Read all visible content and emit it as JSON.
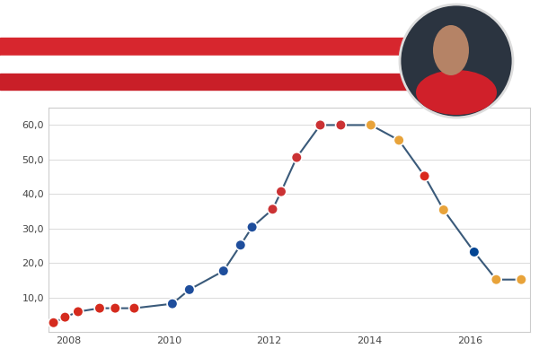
{
  "chart_data": {
    "type": "line",
    "x": [
      2007.7,
      2007.93,
      2008.19,
      2008.62,
      2008.93,
      2009.31,
      2010.07,
      2010.41,
      2011.09,
      2011.43,
      2011.66,
      2012.07,
      2012.24,
      2012.55,
      2013.02,
      2013.43,
      2014.03,
      2014.59,
      2015.1,
      2015.48,
      2016.09,
      2016.53,
      2017.03
    ],
    "values": [
      2.7,
      4.3,
      5.9,
      6.9,
      6.9,
      6.9,
      8.2,
      12.3,
      17.7,
      25.2,
      30.4,
      35.6,
      40.7,
      50.6,
      60,
      60,
      60,
      55.6,
      45.2,
      35.4,
      23.2,
      15.2,
      15.2
    ],
    "colors": [
      "#d52b1e",
      "#d52b1e",
      "#d52b1e",
      "#d52b1e",
      "#d52b1e",
      "#d52b1e",
      "#1f4e9c",
      "#1f4e9c",
      "#1f4e9c",
      "#1f4e9c",
      "#1f4e9c",
      "#cb3234",
      "#cb3234",
      "#cb3234",
      "#cb3234",
      "#cb3234",
      "#e8a33a",
      "#e8a33a",
      "#da291c",
      "#e8a33a",
      "#034694",
      "#e8a33a",
      "#e8a33a"
    ],
    "color": "#3a5a7a",
    "marker": "o",
    "line_style": "solid",
    "xlim": [
      2007.6,
      2017.2
    ],
    "xticks": [
      2008,
      2010,
      2012,
      2014,
      2016
    ],
    "ylim": [
      0,
      65
    ],
    "yticks": [
      {
        "value": 10,
        "label": "10,0"
      },
      {
        "value": 20,
        "label": "20,0"
      },
      {
        "value": 30,
        "label": "30,0"
      },
      {
        "value": 40,
        "label": "40,0"
      },
      {
        "value": 50,
        "label": "50,0"
      },
      {
        "value": 60,
        "label": "60,0"
      }
    ],
    "grid": true
  }
}
